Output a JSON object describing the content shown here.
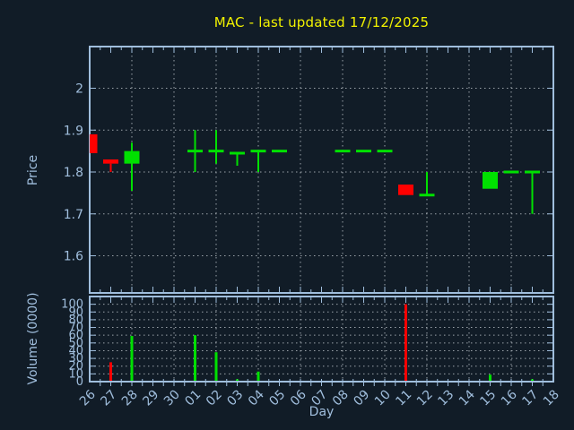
{
  "colors": {
    "background": "#111c27",
    "axis": "#a0bedd",
    "grid": "#b3bac0",
    "title": "#f2f200",
    "up": "#00e000",
    "down": "#ff0000"
  },
  "chart_data": [
    {
      "type": "candlestick",
      "title": "MAC - last updated 17/12/2025",
      "xlabel": "Day",
      "ylabel": "Price",
      "ylim": [
        1.51,
        2.1
      ],
      "yticks": [
        1.6,
        1.7,
        1.8,
        1.9,
        2
      ],
      "ytick_labels": [
        "1.6",
        "1.7",
        "1.8",
        "1.9",
        "2"
      ],
      "grid": "dotted, vertical line every 2 days",
      "categories": [
        "26",
        "27",
        "28",
        "29",
        "30",
        "01",
        "02",
        "03",
        "04",
        "05",
        "06",
        "07",
        "08",
        "09",
        "10",
        "11",
        "12",
        "13",
        "14",
        "15",
        "16",
        "17",
        "18"
      ],
      "gridline_categories": [
        "28",
        "30",
        "02",
        "04",
        "06",
        "08",
        "10",
        "12",
        "14",
        "16"
      ],
      "series": [
        {
          "name": "OHLC",
          "points": [
            {
              "day": "26",
              "open": 1.89,
              "high": 1.89,
              "low": 1.845,
              "close": 1.845,
              "color": "down"
            },
            {
              "day": "27",
              "open": 1.83,
              "high": 1.83,
              "low": 1.8,
              "close": 1.82,
              "color": "down"
            },
            {
              "day": "28",
              "open": 1.82,
              "high": 1.87,
              "low": 1.755,
              "close": 1.85,
              "color": "up"
            },
            {
              "day": "01",
              "open": 1.85,
              "high": 1.9,
              "low": 1.8,
              "close": 1.85,
              "color": "up"
            },
            {
              "day": "02",
              "open": 1.85,
              "high": 1.9,
              "low": 1.82,
              "close": 1.85,
              "color": "up"
            },
            {
              "day": "03",
              "open": 1.845,
              "high": 1.845,
              "low": 1.815,
              "close": 1.845,
              "color": "up"
            },
            {
              "day": "04",
              "open": 1.85,
              "high": 1.85,
              "low": 1.8,
              "close": 1.85,
              "color": "up"
            },
            {
              "day": "05",
              "open": 1.85,
              "high": 1.85,
              "low": 1.85,
              "close": 1.85,
              "color": "up"
            },
            {
              "day": "08",
              "open": 1.85,
              "high": 1.85,
              "low": 1.85,
              "close": 1.85,
              "color": "up"
            },
            {
              "day": "09",
              "open": 1.85,
              "high": 1.85,
              "low": 1.85,
              "close": 1.85,
              "color": "up"
            },
            {
              "day": "10",
              "open": 1.85,
              "high": 1.85,
              "low": 1.85,
              "close": 1.85,
              "color": "up"
            },
            {
              "day": "11",
              "open": 1.77,
              "high": 1.77,
              "low": 1.745,
              "close": 1.745,
              "color": "down"
            },
            {
              "day": "12",
              "open": 1.745,
              "high": 1.8,
              "low": 1.745,
              "close": 1.745,
              "color": "up"
            },
            {
              "day": "15",
              "open": 1.76,
              "high": 1.8,
              "low": 1.76,
              "close": 1.8,
              "color": "up"
            },
            {
              "day": "16",
              "open": 1.8,
              "high": 1.8,
              "low": 1.8,
              "close": 1.8,
              "color": "up"
            },
            {
              "day": "17",
              "open": 1.8,
              "high": 1.8,
              "low": 1.7,
              "close": 1.8,
              "color": "up"
            }
          ]
        }
      ]
    },
    {
      "type": "bar",
      "ylabel": "Volume (0000)",
      "ylim": [
        0,
        110
      ],
      "yticks": [
        0,
        10,
        20,
        30,
        40,
        50,
        60,
        70,
        80,
        90,
        100
      ],
      "ytick_labels": [
        "0",
        "10",
        "20",
        "30",
        "40",
        "50",
        "60",
        "70",
        "80",
        "90",
        "100"
      ],
      "values": [
        {
          "day": "27",
          "value": 25,
          "color": "down"
        },
        {
          "day": "28",
          "value": 59,
          "color": "up"
        },
        {
          "day": "01",
          "value": 60,
          "color": "up"
        },
        {
          "day": "02",
          "value": 38,
          "color": "up"
        },
        {
          "day": "03",
          "value": 3,
          "color": "up"
        },
        {
          "day": "04",
          "value": 13,
          "color": "up"
        },
        {
          "day": "11",
          "value": 100,
          "color": "down"
        },
        {
          "day": "15",
          "value": 9,
          "color": "up"
        },
        {
          "day": "17",
          "value": 3,
          "color": "up"
        }
      ]
    }
  ]
}
